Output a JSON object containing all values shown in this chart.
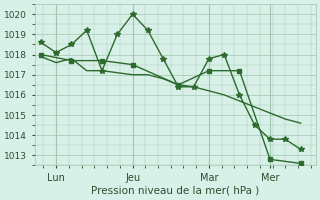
{
  "bg_color": "#d8f0e8",
  "grid_color": "#a0c8b0",
  "line_color": "#2d6a2d",
  "marker_color": "#2d6a2d",
  "xlabel": "Pression niveau de la mer( hPa )",
  "ylabel": "",
  "ylim": [
    1012.5,
    1020.5
  ],
  "yticks": [
    1013,
    1014,
    1015,
    1016,
    1017,
    1018,
    1019,
    1020
  ],
  "xtick_labels": [
    "Lun",
    "Jeu",
    "Mar",
    "Mer"
  ],
  "xtick_positions": [
    0.5,
    3.0,
    5.5,
    7.5
  ],
  "vline_positions": [
    0.5,
    3.0,
    5.5,
    7.5
  ],
  "series": [
    {
      "x": [
        0.0,
        0.5,
        1.0,
        1.5,
        2.0,
        2.5,
        3.0,
        3.5,
        4.0,
        4.5,
        5.0,
        5.5,
        6.0,
        6.5,
        7.0,
        7.5,
        8.0,
        8.5
      ],
      "y": [
        1018.6,
        1018.1,
        1018.5,
        1019.2,
        1017.2,
        1019.0,
        1020.0,
        1019.2,
        1017.8,
        1016.4,
        1016.4,
        1017.8,
        1018.0,
        1016.0,
        1014.5,
        1013.8,
        1013.8,
        1013.3
      ],
      "style": "line+marker"
    },
    {
      "x": [
        0.0,
        0.5,
        1.0,
        1.5,
        2.0,
        2.5,
        3.0,
        3.5,
        4.0,
        4.5,
        5.0,
        5.5,
        6.0,
        6.5,
        7.0,
        7.5,
        8.0,
        8.5
      ],
      "y": [
        1017.9,
        1017.6,
        1017.8,
        1017.2,
        1017.2,
        1017.1,
        1017.0,
        1017.0,
        1016.8,
        1016.5,
        1016.4,
        1016.2,
        1016.0,
        1015.7,
        1015.4,
        1015.1,
        1014.8,
        1014.6
      ],
      "style": "line_only"
    },
    {
      "x": [
        0.0,
        1.0,
        2.0,
        3.0,
        4.5,
        5.5,
        6.5,
        7.5,
        8.5
      ],
      "y": [
        1018.0,
        1017.7,
        1017.7,
        1017.5,
        1016.5,
        1017.2,
        1017.2,
        1012.8,
        1012.6
      ],
      "style": "line+marker"
    }
  ]
}
